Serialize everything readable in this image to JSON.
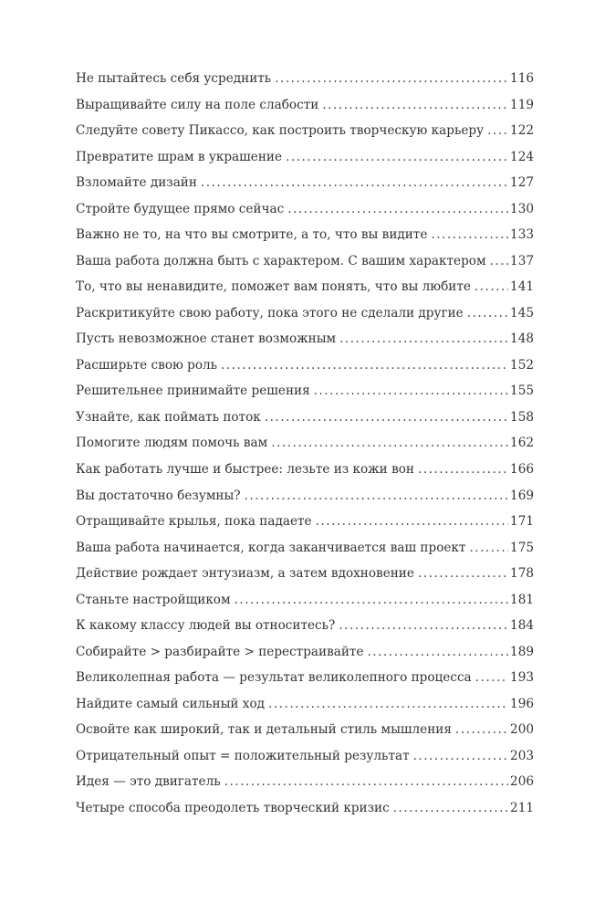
{
  "toc": [
    {
      "title": "Не пытайтесь себя усреднить",
      "page": "116"
    },
    {
      "title": "Выращивайте силу на поле слабости",
      "page": "119"
    },
    {
      "title": "Следуйте совету Пикассо, как построить творческую карьеру",
      "page": "122"
    },
    {
      "title": "Превратите шрам в украшение",
      "page": "124"
    },
    {
      "title": "Взломайте дизайн",
      "page": "127"
    },
    {
      "title": "Стройте будущее прямо сейчас",
      "page": "130"
    },
    {
      "title": "Важно не то, на что вы смотрите, а то, что вы видите",
      "page": "133"
    },
    {
      "title": "Ваша работа должна быть с характером. С вашим характером",
      "page": "137"
    },
    {
      "title": "То, что вы ненавидите, поможет вам понять, что вы любите",
      "page": "141"
    },
    {
      "title": "Раскритикуйте свою работу, пока этого не сделали другие",
      "page": "145"
    },
    {
      "title": "Пусть невозможное станет возможным",
      "page": "148"
    },
    {
      "title": "Расширьте свою роль",
      "page": "152"
    },
    {
      "title": "Решительнее принимайте решения",
      "page": "155"
    },
    {
      "title": "Узнайте, как поймать поток",
      "page": "158"
    },
    {
      "title": "Помогите людям помочь вам",
      "page": "162"
    },
    {
      "title": "Как работать лучше и быстрее: лезьте из кожи вон",
      "page": "166"
    },
    {
      "title": "Вы достаточно безумны?",
      "page": "169"
    },
    {
      "title": "Отращивайте крылья, пока падаете",
      "page": "171"
    },
    {
      "title": "Ваша работа начинается, когда заканчивается ваш проект",
      "page": "175"
    },
    {
      "title": "Действие рождает энтузиазм, а затем вдохновение",
      "page": "178"
    },
    {
      "title": "Станьте настройщиком",
      "page": "181"
    },
    {
      "title": "К какому классу людей вы относитесь?",
      "page": "184"
    },
    {
      "title": "Собирайте > разбирайте > перестраивайте",
      "page": "189"
    },
    {
      "title": "Великолепная работа — результат великолепного процесса",
      "page": "193"
    },
    {
      "title": "Найдите самый сильный ход",
      "page": "196"
    },
    {
      "title": "Освойте как широкий, так и детальный стиль мышления",
      "page": "200"
    },
    {
      "title": "Отрицательный опыт = положительный результат",
      "page": "203"
    },
    {
      "title": "Идея — это двигатель",
      "page": "206"
    },
    {
      "title": "Четыре способа преодолеть творческий кризис",
      "page": "211"
    }
  ]
}
